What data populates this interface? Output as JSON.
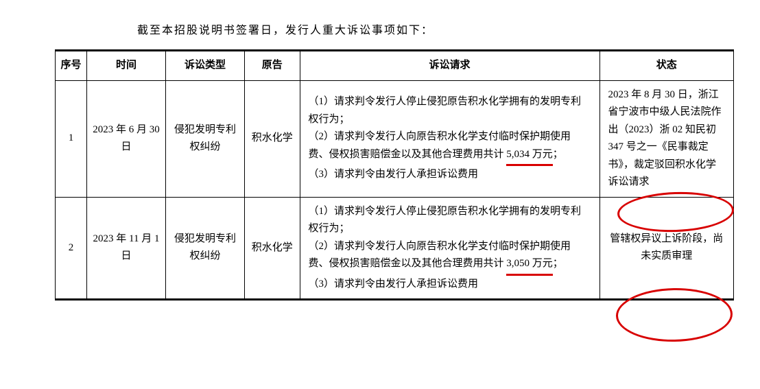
{
  "intro": "截至本招股说明书签署日，发行人重大诉讼事项如下：",
  "headers": {
    "no": "序号",
    "date": "时间",
    "type": "诉讼类型",
    "plaintiff": "原告",
    "claim": "诉讼请求",
    "status": "状态"
  },
  "rows": [
    {
      "no": "1",
      "date": "2023 年 6 月 30 日",
      "type": "侵犯发明专利权纠纷",
      "plaintiff": "积水化学",
      "claim_l1": "（1）请求判令发行人停止侵犯原告积水化学拥有的发明专利权行为；",
      "claim_l2": "（2）请求判令发行人向原告积水化学支付临时保护期使用费、侵权损害赔偿金以及其他合理费用共计 ",
      "claim_amount": "5,034 万元",
      "claim_l2b": "；",
      "claim_l3": "（3）请求判令由发行人承担诉讼费用",
      "status_a": "2023 年 8 月 30 日，浙江省宁波市中级人民法院作出（2023）浙 02 知民初 347 号之一《民事裁定书》，裁",
      "status_b": "定驳回积水化学诉讼请求"
    },
    {
      "no": "2",
      "date": "2023 年 11 月 1 日",
      "type": "侵犯发明专利权纠纷",
      "plaintiff": "积水化学",
      "claim_l1": "（1）请求判令发行人停止侵犯原告积水化学拥有的发明专利权行为；",
      "claim_l2": "（2）请求判令发行人向原告积水化学支付临时保护期使用费、侵权损害赔偿金以及其他合理费用共计 ",
      "claim_amount": "3,050 万元",
      "claim_l2b": "；",
      "claim_l3": "（3）请求判令由发行人承担诉讼费用",
      "status_a": "",
      "status_b": "管辖权异议上诉阶段，尚未实质审理"
    }
  ],
  "colors": {
    "annotation": "#d80000",
    "text": "#000000",
    "background": "#ffffff"
  }
}
